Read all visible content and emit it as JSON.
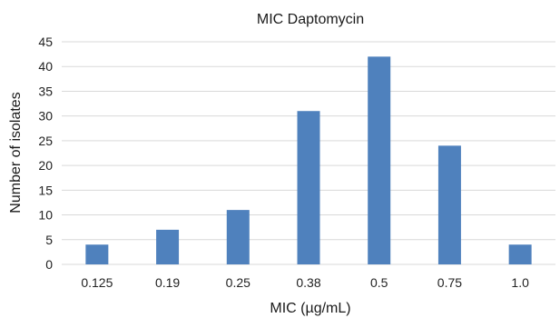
{
  "chart_data": {
    "type": "bar",
    "title": "MIC Daptomycin",
    "xlabel": "MIC (µg/mL)",
    "ylabel": "Number of isolates",
    "categories": [
      "0.125",
      "0.19",
      "0.25",
      "0.38",
      "0.5",
      "0.75",
      "1.0"
    ],
    "values": [
      4,
      7,
      11,
      31,
      42,
      24,
      4
    ],
    "ylim": [
      0,
      45
    ],
    "yticks": [
      0,
      5,
      10,
      15,
      20,
      25,
      30,
      35,
      40,
      45
    ],
    "grid": true,
    "legend": "none",
    "bar_color": "#4f81bd"
  }
}
